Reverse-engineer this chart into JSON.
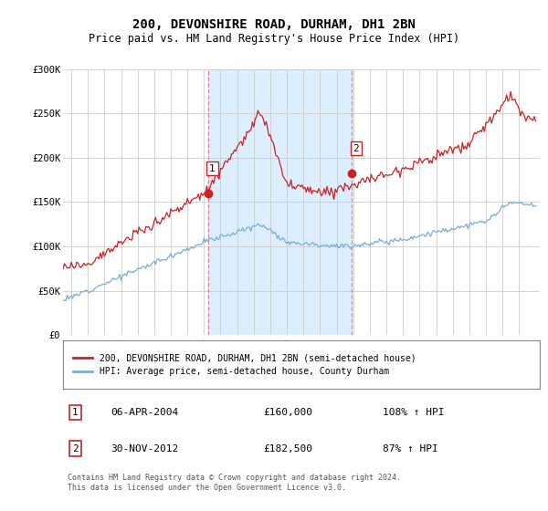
{
  "title": "200, DEVONSHIRE ROAD, DURHAM, DH1 2BN",
  "subtitle": "Price paid vs. HM Land Registry's House Price Index (HPI)",
  "title_fontsize": 10,
  "subtitle_fontsize": 8.5,
  "ylim": [
    0,
    300000
  ],
  "yticks": [
    0,
    50000,
    100000,
    150000,
    200000,
    250000,
    300000
  ],
  "ytick_labels": [
    "£0",
    "£50K",
    "£100K",
    "£150K",
    "£200K",
    "£250K",
    "£300K"
  ],
  "hpi_color": "#7aadd4",
  "price_color": "#cc2222",
  "shade_color": "#ddeeff",
  "marker1_year": 2004.25,
  "marker1_price": 160000,
  "marker2_year": 2012.917,
  "marker2_price": 182500,
  "legend_label_red": "200, DEVONSHIRE ROAD, DURHAM, DH1 2BN (semi-detached house)",
  "legend_label_blue": "HPI: Average price, semi-detached house, County Durham",
  "table_rows": [
    {
      "num": "1",
      "date": "06-APR-2004",
      "price": "£160,000",
      "hpi": "108% ↑ HPI"
    },
    {
      "num": "2",
      "date": "30-NOV-2012",
      "price": "£182,500",
      "hpi": "87% ↑ HPI"
    }
  ],
  "footnote": "Contains HM Land Registry data © Crown copyright and database right 2024.\nThis data is licensed under the Open Government Licence v3.0.",
  "background_color": "#ffffff",
  "grid_color": "#cccccc",
  "vline_color": "#dd4444",
  "vline_alpha": 0.6,
  "xmin": 1995.5,
  "xmax": 2024.25
}
